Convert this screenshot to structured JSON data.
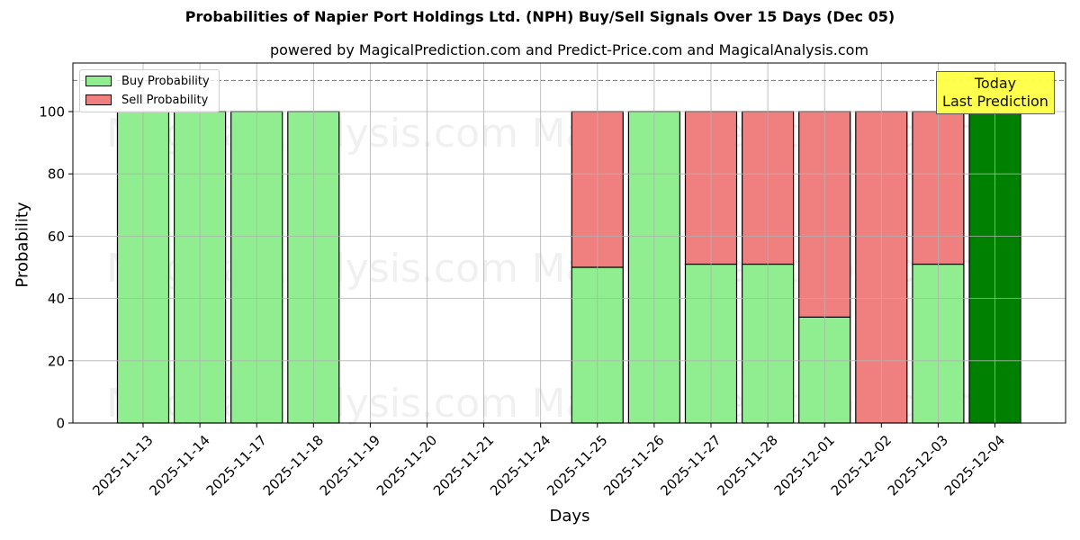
{
  "header": {
    "title": "Probabilities of Napier Port Holdings Ltd. (NPH) Buy/Sell Signals Over 15 Days (Dec 05)",
    "subtitle": "powered by MagicalPrediction.com and Predict-Price.com and MagicalAnalysis.com"
  },
  "legend": {
    "buy_label": "Buy Probability",
    "sell_label": "Sell Probability"
  },
  "annotation": {
    "line1": "Today",
    "line2": "Last Prediction"
  },
  "watermarks": [
    "MagicalAnalysis.com",
    "MagicalPrediction.com"
  ],
  "colors": {
    "buy": "#90ee90",
    "sell": "#f08080",
    "today_buy": "#008000",
    "annotation_bg": "#ffff44",
    "grid": "#b0b0b0"
  },
  "chart_data": {
    "type": "bar",
    "stacked": true,
    "title": "Probabilities of Napier Port Holdings Ltd. (NPH) Buy/Sell Signals Over 15 Days (Dec 05)",
    "subtitle": "powered by MagicalPrediction.com and Predict-Price.com and MagicalAnalysis.com",
    "xlabel": "Days",
    "ylabel": "Probability",
    "ylim": [
      0,
      115.6
    ],
    "yticks": [
      0,
      20,
      40,
      60,
      80,
      100
    ],
    "grid": true,
    "legend_position": "upper left",
    "reference_line": {
      "y": 110,
      "style": "dashed"
    },
    "categories": [
      "2025-11-13",
      "2025-11-14",
      "2025-11-17",
      "2025-11-18",
      "2025-11-19",
      "2025-11-20",
      "2025-11-21",
      "2025-11-24",
      "2025-11-25",
      "2025-11-26",
      "2025-11-27",
      "2025-11-28",
      "2025-12-01",
      "2025-12-02",
      "2025-12-03",
      "2025-12-04"
    ],
    "series": [
      {
        "name": "Buy Probability",
        "values": [
          100,
          100,
          100,
          100,
          0,
          0,
          0,
          0,
          50,
          100,
          51,
          51,
          34,
          0,
          51,
          100
        ]
      },
      {
        "name": "Sell Probability",
        "values": [
          0,
          0,
          0,
          0,
          0,
          0,
          0,
          0,
          50,
          0,
          49,
          49,
          66,
          100,
          49,
          0
        ]
      }
    ],
    "highlight": {
      "category": "2025-12-04",
      "label": "Today\nLast Prediction"
    }
  }
}
